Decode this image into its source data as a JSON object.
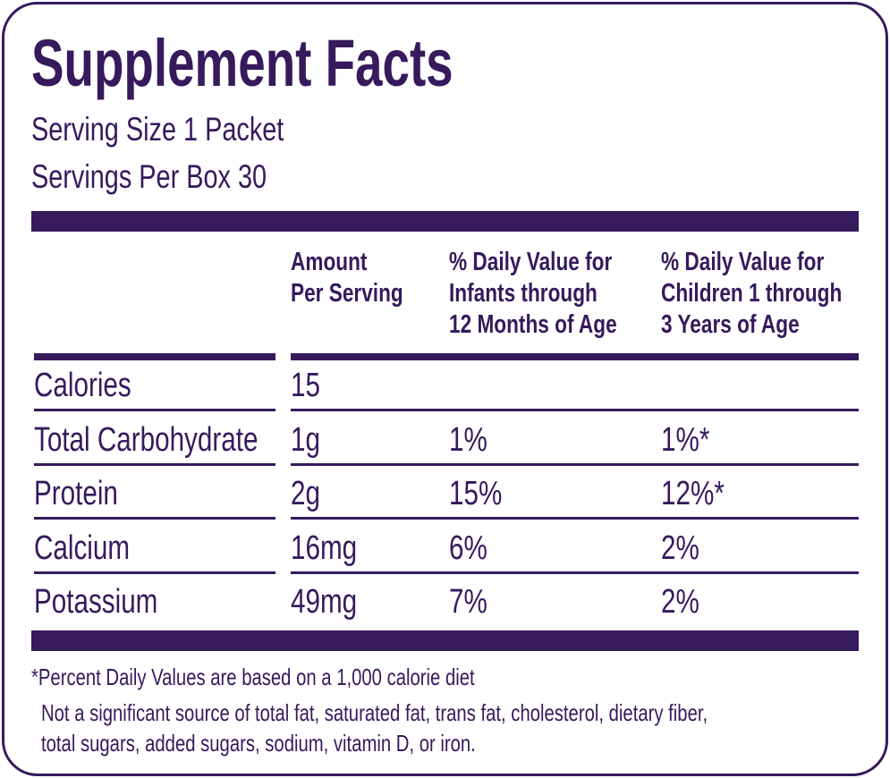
{
  "title": "Supplement Facts",
  "serving_size": "Serving Size 1 Packet",
  "servings_per_box": "Servings Per Box 30",
  "headers": [
    [
      "Amount",
      "Per Serving"
    ],
    [
      "% Daily Value for",
      "Infants through",
      "12 Months of Age"
    ],
    [
      "% Daily Value for",
      "Children 1 through",
      "3 Years of Age"
    ]
  ],
  "rows": [
    {
      "name": "Calories",
      "amount": "15",
      "infants": "",
      "children": ""
    },
    {
      "name": "Total Carbohydrate",
      "amount": "1g",
      "infants": "1%",
      "children": "1%*"
    },
    {
      "name": "Protein",
      "amount": "2g",
      "infants": "15%",
      "children": "12%*"
    },
    {
      "name": "Calcium",
      "amount": "16mg",
      "infants": "6%",
      "children": "2%"
    },
    {
      "name": "Potassium",
      "amount": "49mg",
      "infants": "7%",
      "children": "2%"
    }
  ],
  "footnotes": [
    "*Percent Daily Values are based on a 1,000 calorie diet",
    "Not a significant source of total fat, saturated fat, trans fat, cholesterol, dietary fiber,",
    "total sugars, added sugars, sodium, vitamin D, or iron."
  ],
  "colors": {
    "brand": "#361a5c"
  }
}
